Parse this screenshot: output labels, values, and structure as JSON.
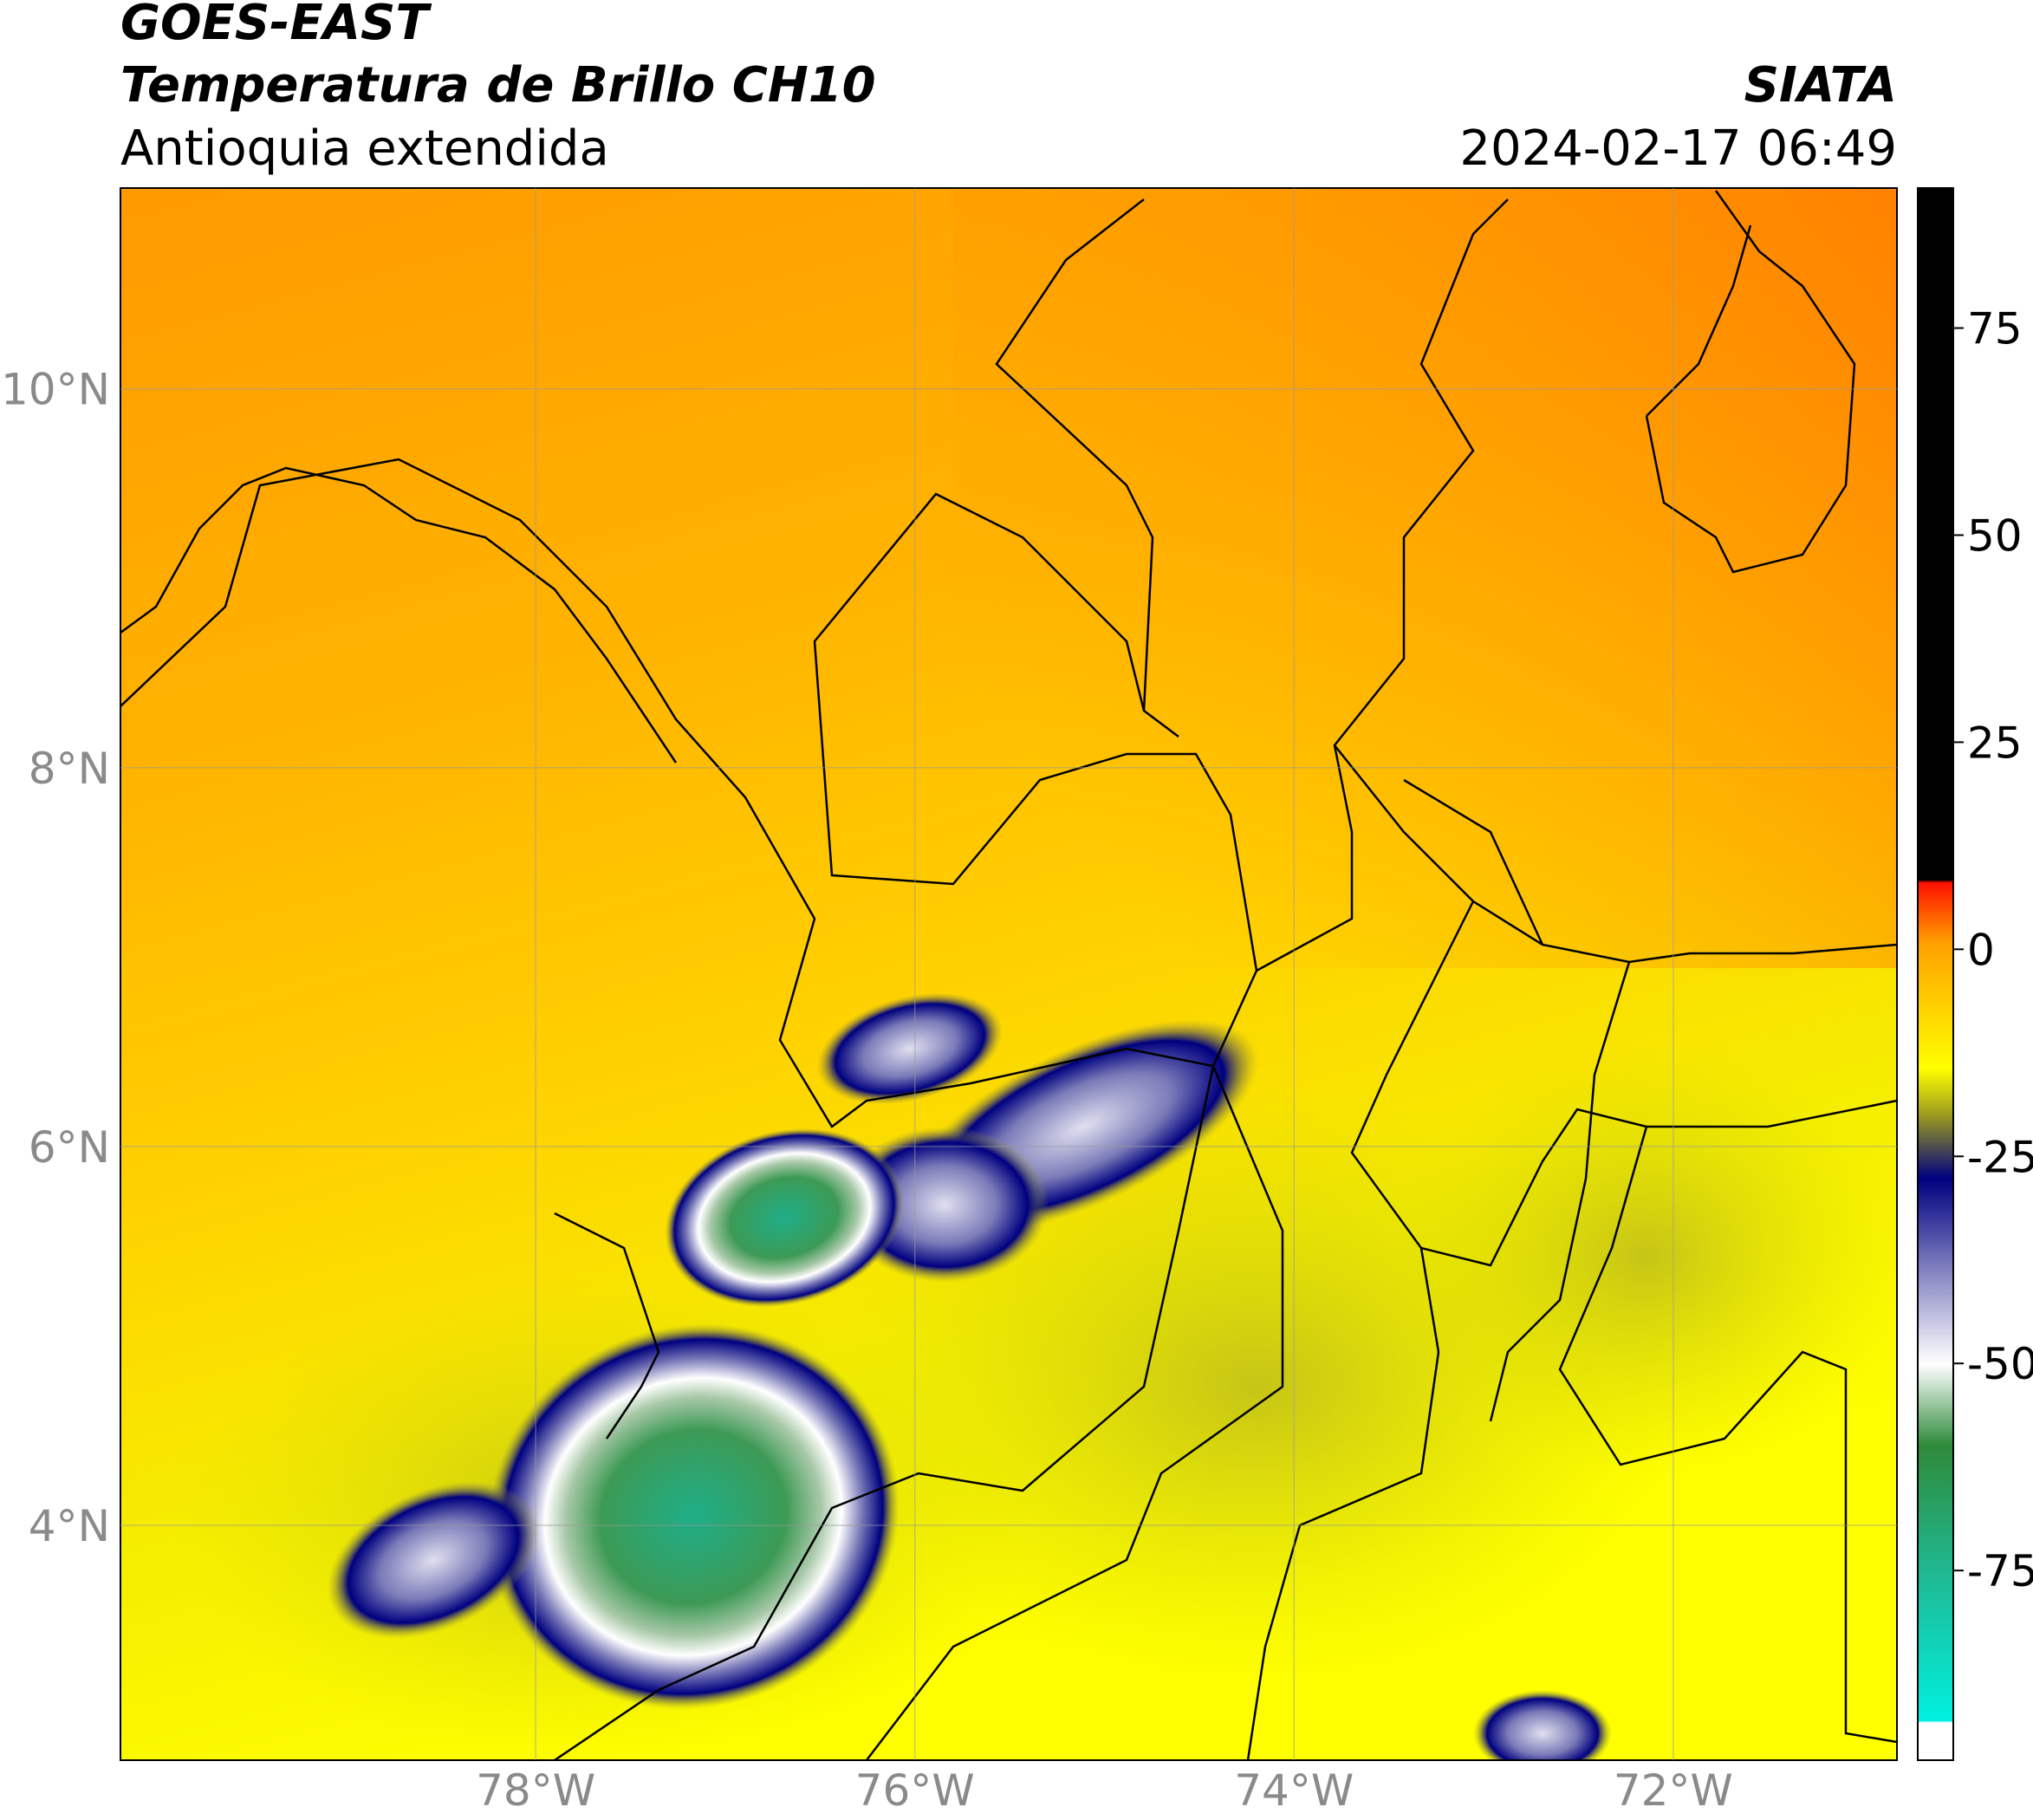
{
  "header": {
    "title": "GOES-EAST",
    "subtitle": "Temperatura de Brillo CH10",
    "region": "Antioquia extendida",
    "source": "SIATA",
    "datetime": "2024-02-17 06:49"
  },
  "map": {
    "xlim": [
      -80.19,
      -70.82
    ],
    "ylim": [
      2.76,
      11.06
    ],
    "xticks": [
      {
        "value": -78,
        "label": "78°W"
      },
      {
        "value": -76,
        "label": "76°W"
      },
      {
        "value": -74,
        "label": "74°W"
      },
      {
        "value": -72,
        "label": "72°W"
      }
    ],
    "yticks": [
      {
        "value": 4,
        "label": "4°N"
      },
      {
        "value": 6,
        "label": "6°N"
      },
      {
        "value": 8,
        "label": "8°N"
      },
      {
        "value": 10,
        "label": "10°N"
      }
    ],
    "grid": true
  },
  "colorbar": {
    "lim": [
      -97.9,
      91.9
    ],
    "ticks": [
      -75,
      -50,
      -25,
      0,
      25,
      50,
      75
    ]
  }
}
